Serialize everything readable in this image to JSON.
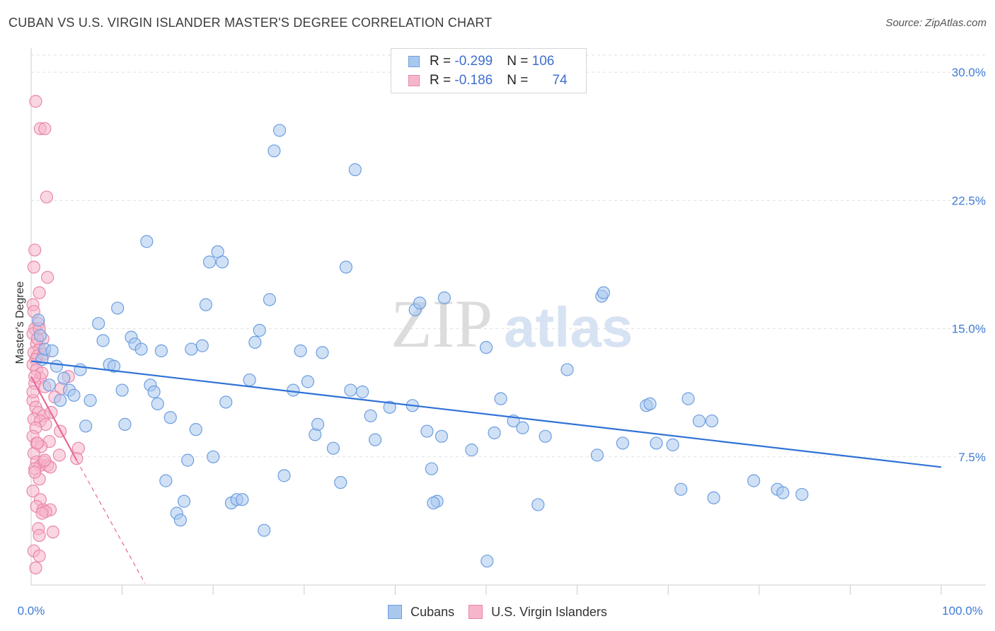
{
  "header": {
    "title": "CUBAN VS U.S. VIRGIN ISLANDER MASTER'S DEGREE CORRELATION CHART",
    "source": "Source: ZipAtlas.com"
  },
  "watermark": {
    "zip": "ZIP",
    "atlas": "atlas"
  },
  "legend": {
    "rows": [
      {
        "r_label": "R = ",
        "r_value": "-0.299",
        "n_label": "N = ",
        "n_value": "106"
      },
      {
        "r_label": "R = ",
        "r_value": "-0.186",
        "n_label": "N = ",
        "n_value": "74"
      }
    ]
  },
  "bottom_legend": {
    "series1": "Cubans",
    "series2": "U.S. Virgin Islanders"
  },
  "colors": {
    "blue_fill": "#a9c8ee",
    "blue_stroke": "#6d9ee0",
    "blue_line": "#2f72d6",
    "pink_fill": "#f6b5cb",
    "pink_stroke": "#ea86a9",
    "pink_line": "#e8679a",
    "tick_text": "#3f7bd4",
    "grid": "#e0e0e0"
  },
  "chart_data": {
    "type": "scatter",
    "title": "CUBAN VS U.S. VIRGIN ISLANDER MASTER'S DEGREE CORRELATION CHART",
    "xlabel": "",
    "ylabel": "Master's Degree",
    "xlim": [
      0,
      100
    ],
    "ylim": [
      0,
      31
    ],
    "x_tick_labels": [
      "0.0%",
      "100.0%"
    ],
    "y_ticks": [
      {
        "value": 7.5,
        "label": "7.5%"
      },
      {
        "value": 15.0,
        "label": "15.0%"
      },
      {
        "value": 22.5,
        "label": "22.5%"
      },
      {
        "value": 30.0,
        "label": "30.0%"
      }
    ],
    "series": [
      {
        "name": "Cubans",
        "r": -0.299,
        "n": 106,
        "trend": {
          "x": [
            0,
            100
          ],
          "y": [
            13.1,
            6.9
          ]
        },
        "points": [
          [
            0.8,
            15.5
          ],
          [
            1.0,
            14.6
          ],
          [
            1.2,
            13.2
          ],
          [
            1.5,
            13.8
          ],
          [
            2.0,
            11.7
          ],
          [
            2.3,
            13.7
          ],
          [
            2.8,
            12.8
          ],
          [
            3.2,
            10.8
          ],
          [
            3.6,
            12.1
          ],
          [
            4.2,
            11.4
          ],
          [
            4.7,
            11.1
          ],
          [
            5.4,
            12.6
          ],
          [
            6.0,
            9.3
          ],
          [
            6.5,
            10.8
          ],
          [
            7.4,
            15.3
          ],
          [
            7.9,
            14.3
          ],
          [
            8.6,
            12.9
          ],
          [
            9.1,
            12.8
          ],
          [
            9.5,
            16.2
          ],
          [
            10.0,
            11.4
          ],
          [
            10.3,
            9.4
          ],
          [
            11.0,
            14.5
          ],
          [
            11.4,
            14.1
          ],
          [
            12.1,
            13.8
          ],
          [
            12.7,
            20.1
          ],
          [
            13.1,
            11.7
          ],
          [
            13.5,
            11.3
          ],
          [
            13.9,
            10.6
          ],
          [
            14.3,
            13.7
          ],
          [
            14.8,
            6.1
          ],
          [
            15.3,
            9.8
          ],
          [
            16.0,
            4.2
          ],
          [
            16.4,
            3.8
          ],
          [
            16.8,
            4.9
          ],
          [
            17.2,
            7.3
          ],
          [
            17.6,
            13.8
          ],
          [
            18.1,
            9.1
          ],
          [
            18.8,
            14.0
          ],
          [
            19.2,
            16.4
          ],
          [
            19.6,
            18.9
          ],
          [
            20.0,
            7.5
          ],
          [
            20.5,
            19.5
          ],
          [
            21.0,
            18.9
          ],
          [
            21.4,
            10.7
          ],
          [
            22.0,
            4.8
          ],
          [
            22.6,
            5.0
          ],
          [
            23.2,
            5.0
          ],
          [
            24.0,
            12.0
          ],
          [
            24.6,
            14.2
          ],
          [
            25.1,
            14.9
          ],
          [
            25.6,
            3.2
          ],
          [
            26.2,
            16.7
          ],
          [
            26.7,
            25.4
          ],
          [
            27.3,
            26.6
          ],
          [
            27.8,
            6.4
          ],
          [
            28.8,
            11.4
          ],
          [
            29.6,
            13.7
          ],
          [
            30.4,
            11.9
          ],
          [
            31.2,
            8.8
          ],
          [
            32.0,
            13.6
          ],
          [
            31.5,
            9.4
          ],
          [
            33.2,
            8.0
          ],
          [
            34.0,
            6.0
          ],
          [
            34.6,
            18.6
          ],
          [
            35.1,
            11.4
          ],
          [
            35.6,
            24.3
          ],
          [
            36.4,
            11.3
          ],
          [
            37.3,
            9.9
          ],
          [
            37.8,
            8.5
          ],
          [
            39.4,
            10.4
          ],
          [
            41.9,
            10.5
          ],
          [
            42.2,
            16.1
          ],
          [
            42.7,
            16.5
          ],
          [
            43.5,
            9.0
          ],
          [
            44.0,
            6.8
          ],
          [
            44.6,
            4.9
          ],
          [
            44.2,
            4.8
          ],
          [
            45.1,
            8.7
          ],
          [
            45.4,
            16.8
          ],
          [
            48.4,
            7.9
          ],
          [
            50.0,
            13.9
          ],
          [
            50.9,
            8.9
          ],
          [
            51.6,
            10.9
          ],
          [
            53.0,
            9.6
          ],
          [
            54.0,
            9.2
          ],
          [
            55.7,
            4.7
          ],
          [
            56.5,
            8.7
          ],
          [
            58.9,
            12.6
          ],
          [
            62.2,
            7.6
          ],
          [
            62.7,
            16.9
          ],
          [
            62.9,
            17.1
          ],
          [
            65.0,
            8.3
          ],
          [
            67.6,
            10.5
          ],
          [
            68.0,
            10.6
          ],
          [
            68.7,
            8.3
          ],
          [
            70.5,
            8.2
          ],
          [
            71.4,
            5.6
          ],
          [
            72.2,
            10.9
          ],
          [
            73.4,
            9.6
          ],
          [
            74.8,
            9.6
          ],
          [
            75.0,
            5.1
          ],
          [
            79.4,
            6.1
          ],
          [
            82.0,
            5.6
          ],
          [
            82.6,
            5.4
          ],
          [
            84.7,
            5.3
          ],
          [
            50.1,
            1.4
          ]
        ]
      },
      {
        "name": "U.S. Virgin Islanders",
        "r": -0.186,
        "n": 74,
        "trend": {
          "x": [
            0,
            5.0
          ],
          "y": [
            12.2,
            7.3
          ]
        },
        "trend_extension": {
          "x": [
            5.0,
            12.5
          ],
          "y": [
            7.3,
            0.1
          ]
        },
        "points": [
          [
            0.5,
            28.3
          ],
          [
            1.0,
            26.7
          ],
          [
            1.5,
            26.7
          ],
          [
            1.7,
            22.7
          ],
          [
            0.4,
            19.6
          ],
          [
            0.3,
            18.6
          ],
          [
            1.8,
            18.0
          ],
          [
            0.9,
            17.1
          ],
          [
            0.2,
            16.4
          ],
          [
            0.3,
            16.0
          ],
          [
            0.8,
            15.3
          ],
          [
            0.4,
            15.0
          ],
          [
            0.2,
            14.7
          ],
          [
            1.3,
            14.4
          ],
          [
            0.6,
            14.1
          ],
          [
            0.9,
            13.8
          ],
          [
            0.3,
            13.6
          ],
          [
            0.7,
            13.4
          ],
          [
            0.5,
            13.2
          ],
          [
            1.4,
            13.5
          ],
          [
            0.2,
            12.9
          ],
          [
            0.6,
            12.6
          ],
          [
            1.0,
            12.1
          ],
          [
            0.4,
            11.8
          ],
          [
            1.5,
            11.6
          ],
          [
            3.3,
            11.5
          ],
          [
            4.1,
            12.2
          ],
          [
            2.6,
            11.0
          ],
          [
            0.2,
            10.8
          ],
          [
            0.5,
            10.4
          ],
          [
            0.8,
            10.1
          ],
          [
            1.4,
            9.9
          ],
          [
            2.2,
            10.1
          ],
          [
            0.3,
            9.7
          ],
          [
            1.0,
            9.6
          ],
          [
            1.6,
            9.4
          ],
          [
            0.5,
            9.2
          ],
          [
            3.2,
            9.0
          ],
          [
            0.2,
            8.7
          ],
          [
            2.0,
            8.4
          ],
          [
            0.6,
            8.3
          ],
          [
            1.1,
            8.1
          ],
          [
            5.2,
            8.0
          ],
          [
            0.3,
            7.7
          ],
          [
            3.1,
            7.6
          ],
          [
            5.0,
            7.4
          ],
          [
            0.6,
            7.2
          ],
          [
            1.0,
            7.0
          ],
          [
            1.4,
            7.2
          ],
          [
            1.8,
            7.0
          ],
          [
            0.4,
            6.8
          ],
          [
            2.1,
            6.9
          ],
          [
            0.9,
            6.2
          ],
          [
            0.2,
            5.5
          ],
          [
            1.0,
            5.0
          ],
          [
            0.6,
            4.6
          ],
          [
            1.3,
            4.4
          ],
          [
            2.1,
            4.4
          ],
          [
            1.6,
            4.3
          ],
          [
            0.8,
            3.3
          ],
          [
            0.9,
            2.9
          ],
          [
            2.4,
            3.1
          ],
          [
            0.3,
            2.0
          ],
          [
            0.9,
            1.7
          ],
          [
            0.5,
            1.0
          ],
          [
            0.7,
            8.3
          ],
          [
            1.2,
            12.4
          ],
          [
            0.4,
            12.2
          ],
          [
            1.5,
            7.3
          ],
          [
            1.2,
            4.2
          ],
          [
            0.7,
            14.4
          ],
          [
            0.2,
            11.3
          ],
          [
            0.9,
            15.0
          ],
          [
            0.4,
            6.6
          ]
        ]
      }
    ]
  }
}
